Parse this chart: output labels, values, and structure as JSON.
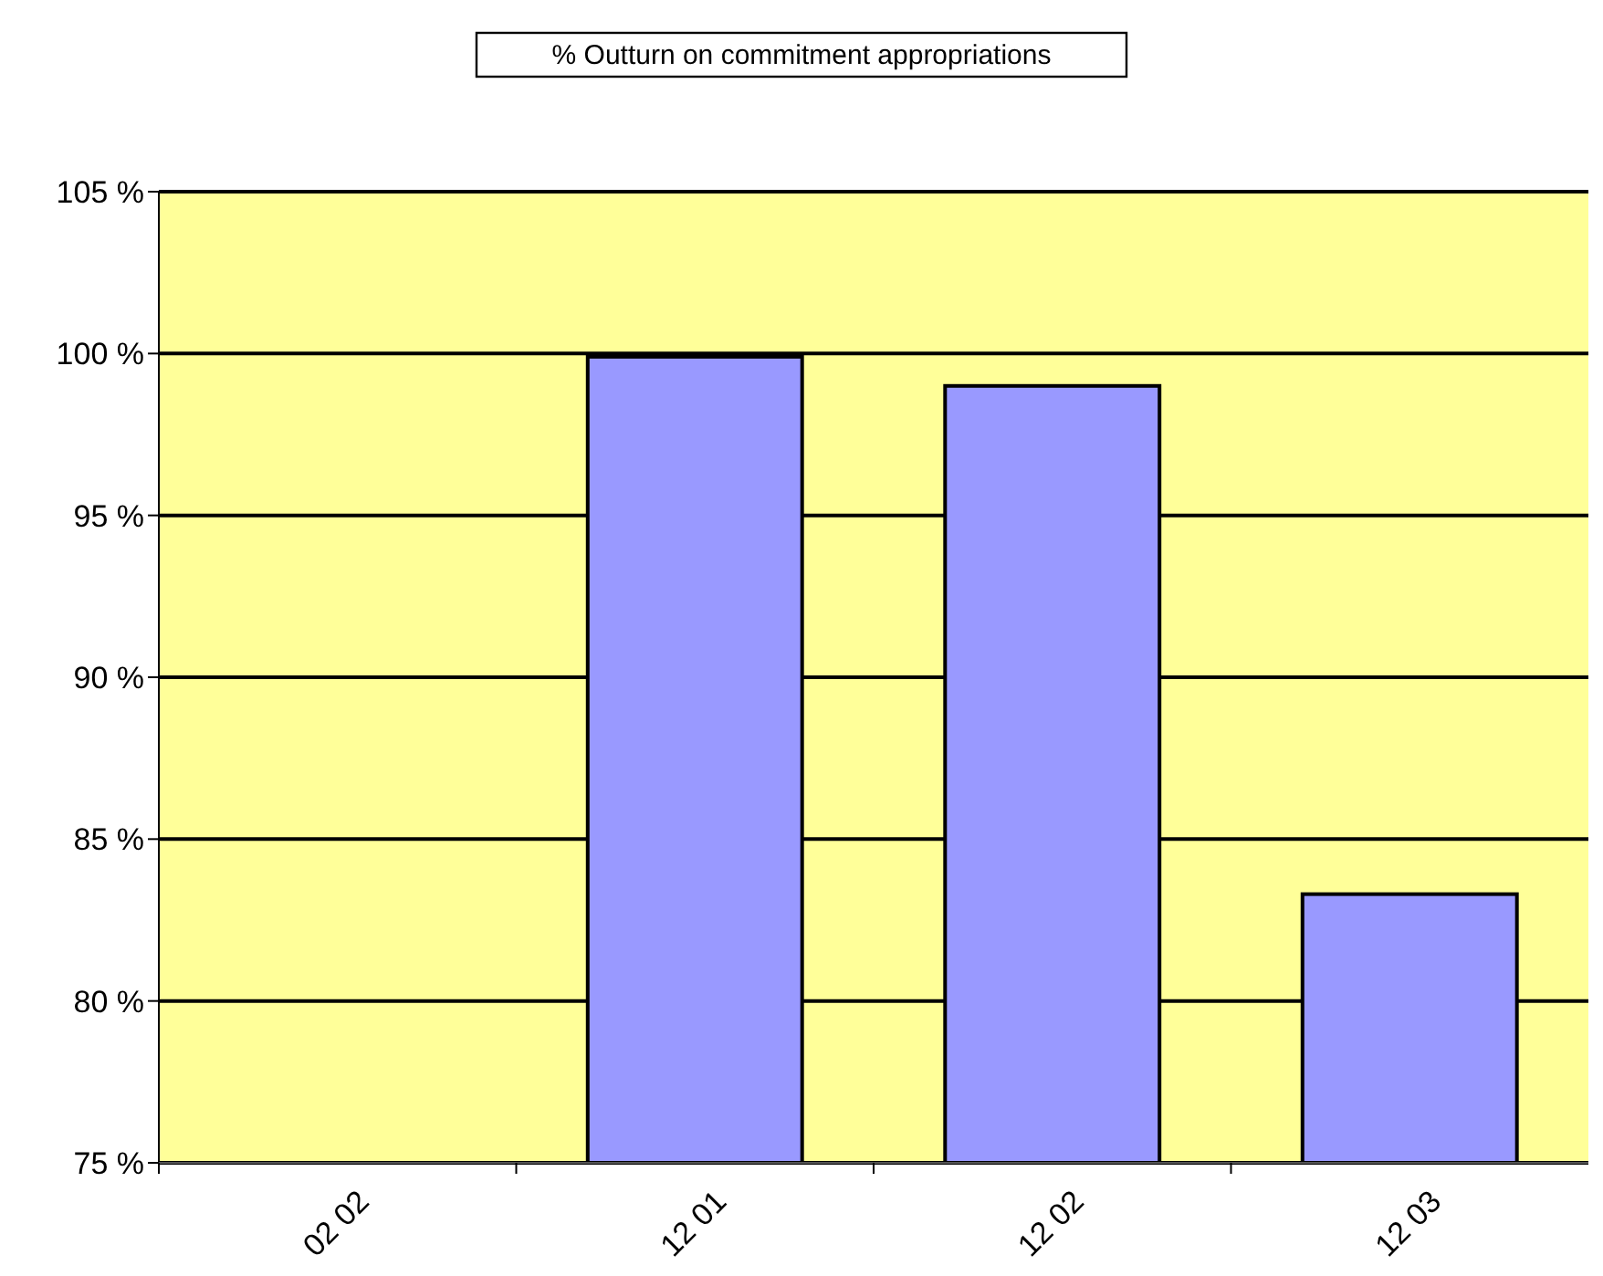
{
  "chart_data": {
    "type": "bar",
    "title": "% Outturn on commitment appropriations",
    "categories": [
      "02 02",
      "12 01",
      "12 02",
      "12 03"
    ],
    "values": [
      null,
      99.9,
      99.0,
      83.3
    ],
    "color": "#9999ff",
    "ylim": [
      75,
      105
    ],
    "yticks": [
      {
        "value": 75,
        "label": "75 %"
      },
      {
        "value": 80,
        "label": "80 %"
      },
      {
        "value": 85,
        "label": "85 %"
      },
      {
        "value": 90,
        "label": "90 %"
      },
      {
        "value": 95,
        "label": "95 %"
      },
      {
        "value": 100,
        "label": "100 %"
      },
      {
        "value": 105,
        "label": "105 %"
      }
    ],
    "grid": true
  }
}
